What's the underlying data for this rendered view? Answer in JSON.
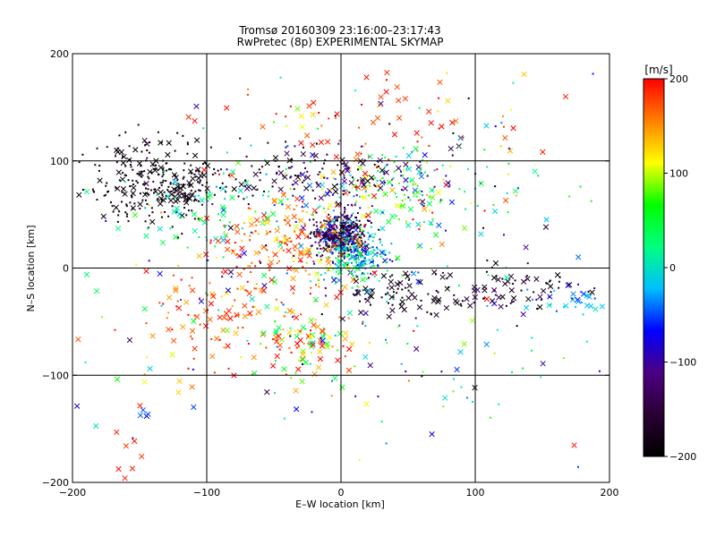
{
  "chart_data": {
    "type": "scatter",
    "title": "Tromsø 20160309 23:16:00–23:17:43",
    "subtitle": "RwPretec (8p) EXPERIMENTAL SKYMAP",
    "xlabel": "E–W location [km]",
    "ylabel": "N–S location [km]",
    "xlim": [
      -200,
      200
    ],
    "ylim": [
      -200,
      200
    ],
    "xticks": [
      -200,
      -100,
      0,
      100,
      200
    ],
    "yticks": [
      -200,
      -100,
      0,
      100,
      200
    ],
    "grid": true,
    "grid_lines_x": [
      -100,
      0,
      100
    ],
    "grid_lines_y": [
      -100,
      0,
      100
    ],
    "colorbar": {
      "label": "[m/s]",
      "range": [
        -200,
        200
      ],
      "ticks": [
        200,
        100,
        0,
        -100,
        -200
      ],
      "colormap": [
        "#000000",
        "#2a0033",
        "#4b0082",
        "#0000ff",
        "#00bfff",
        "#00ff80",
        "#00ff00",
        "#ffff00",
        "#ff8000",
        "#ff0000"
      ]
    },
    "markers": {
      "cross": "x",
      "dot": "."
    },
    "clusters": [
      {
        "cx": 0,
        "cy": 30,
        "sx": 10,
        "sy": 10,
        "n": 420,
        "vmean": -140,
        "vspread": 80,
        "crossFrac": 0.1
      },
      {
        "cx": 10,
        "cy": 10,
        "sx": 12,
        "sy": 12,
        "n": 220,
        "vmean": 0,
        "vspread": 90,
        "crossFrac": 0.1
      },
      {
        "cx": -130,
        "cy": 80,
        "sx": 28,
        "sy": 18,
        "n": 300,
        "vmean": -190,
        "vspread": 30,
        "crossFrac": 0.25
      },
      {
        "cx": -100,
        "cy": 50,
        "sx": 20,
        "sy": 20,
        "n": 60,
        "vmean": 10,
        "vspread": 60,
        "crossFrac": 0.4
      },
      {
        "cx": -40,
        "cy": 25,
        "sx": 25,
        "sy": 18,
        "n": 160,
        "vmean": 160,
        "vspread": 60,
        "crossFrac": 0.4
      },
      {
        "cx": 40,
        "cy": 75,
        "sx": 40,
        "sy": 20,
        "n": 200,
        "vmean": 40,
        "vspread": 170,
        "crossFrac": 0.3
      },
      {
        "cx": -20,
        "cy": 85,
        "sx": 30,
        "sy": 15,
        "n": 120,
        "vmean": -160,
        "vspread": 80,
        "crossFrac": 0.3
      },
      {
        "cx": -25,
        "cy": -70,
        "sx": 15,
        "sy": 15,
        "n": 80,
        "vmean": 120,
        "vspread": 160,
        "crossFrac": 0.5
      },
      {
        "cx": 130,
        "cy": -20,
        "sx": 30,
        "sy": 12,
        "n": 70,
        "vmean": -170,
        "vspread": 60,
        "crossFrac": 0.5
      },
      {
        "cx": 170,
        "cy": -30,
        "sx": 15,
        "sy": 8,
        "n": 30,
        "vmean": -40,
        "vspread": 40,
        "crossFrac": 0.6
      },
      {
        "cx": 50,
        "cy": -25,
        "sx": 25,
        "sy": 12,
        "n": 80,
        "vmean": -180,
        "vspread": 40,
        "crossFrac": 0.5
      },
      {
        "cx": -80,
        "cy": -40,
        "sx": 40,
        "sy": 30,
        "n": 140,
        "vmean": 170,
        "vspread": 50,
        "crossFrac": 0.5
      },
      {
        "cx": 40,
        "cy": 140,
        "sx": 60,
        "sy": 25,
        "n": 70,
        "vmean": 170,
        "vspread": 60,
        "crossFrac": 0.5
      },
      {
        "cx": 0,
        "cy": 0,
        "sx": 110,
        "sy": 90,
        "n": 320,
        "vmean": 0,
        "vspread": 200,
        "crossFrac": 0.35
      },
      {
        "cx": -160,
        "cy": -170,
        "sx": 10,
        "sy": 20,
        "n": 8,
        "vmean": 190,
        "vspread": 20,
        "crossFrac": 1.0
      },
      {
        "cx": -150,
        "cy": -135,
        "sx": 8,
        "sy": 5,
        "n": 4,
        "vmean": -60,
        "vspread": 20,
        "crossFrac": 1.0
      }
    ]
  }
}
